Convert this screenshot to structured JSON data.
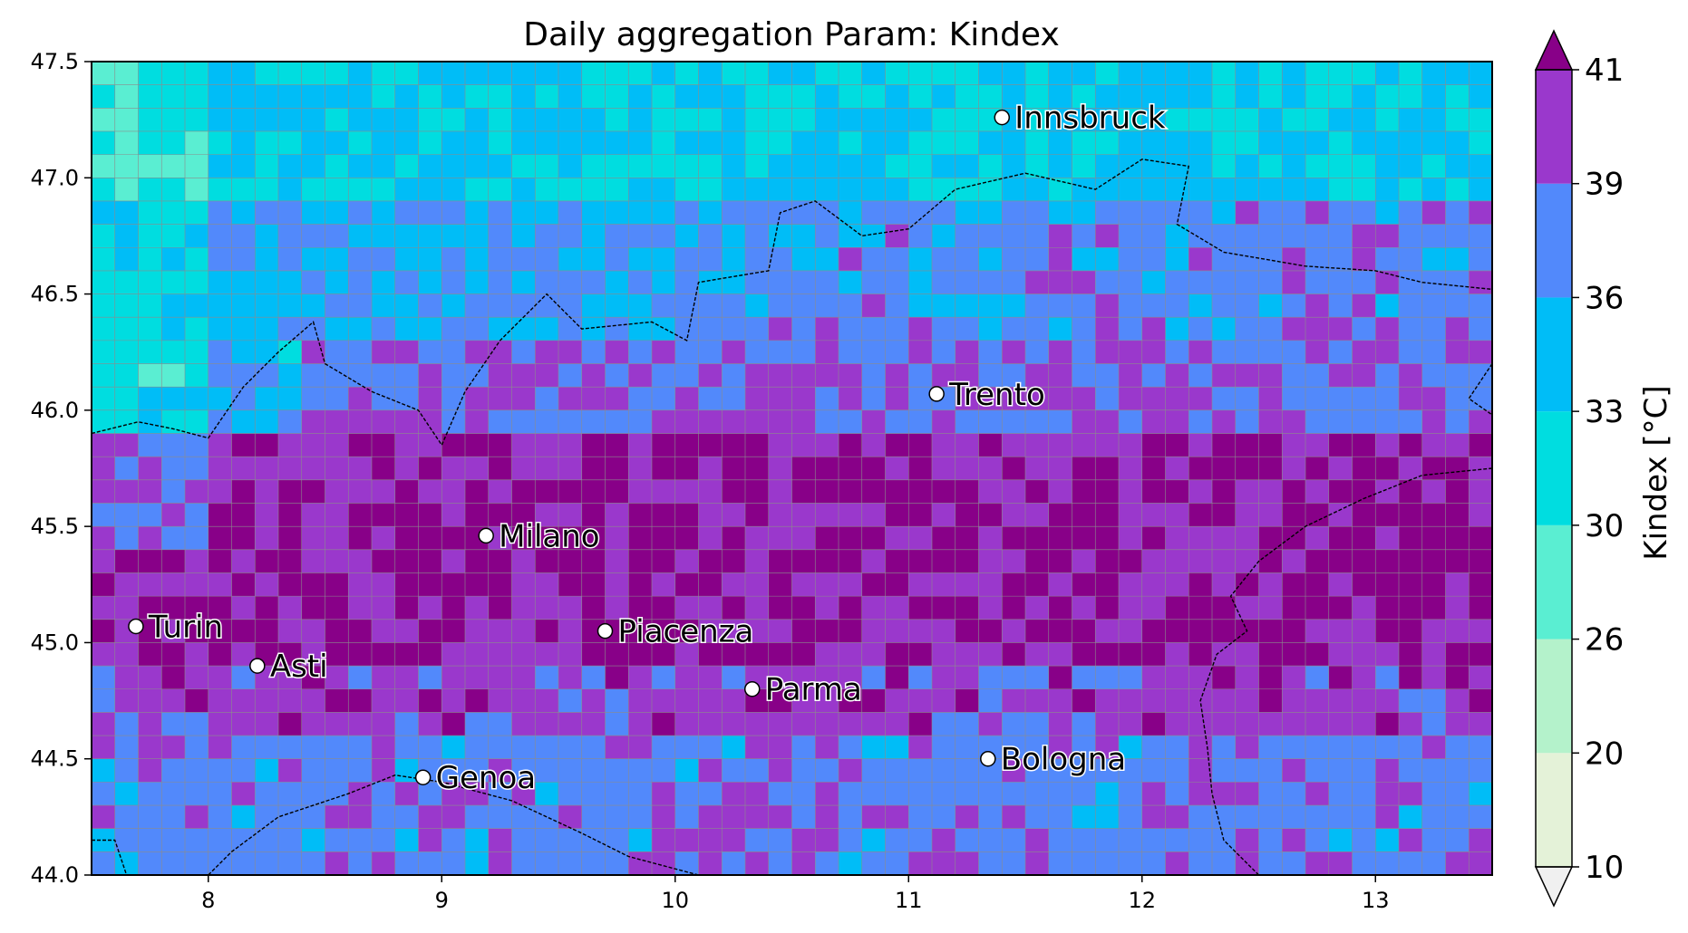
{
  "chart_data": {
    "type": "heatmap",
    "title": "Daily aggregation Param: Kindex",
    "xlabel": "",
    "ylabel": "",
    "xlim": [
      7.5,
      13.5
    ],
    "ylim": [
      44.0,
      47.5
    ],
    "x_ticks": [
      8,
      9,
      10,
      11,
      12,
      13
    ],
    "y_ticks": [
      "44.0",
      "44.5",
      "45.0",
      "45.5",
      "46.0",
      "46.5",
      "47.0",
      "47.5"
    ],
    "grid": true,
    "colorbar": {
      "label": "Kindex  [°C]",
      "ticks": [
        10,
        20,
        26,
        30,
        33,
        36,
        39,
        41
      ],
      "bins": [
        {
          "from": 10,
          "to": 20,
          "color": "#e4f2d8"
        },
        {
          "from": 20,
          "to": 26,
          "color": "#b4f2cb"
        },
        {
          "from": 26,
          "to": 30,
          "color": "#5aeed2"
        },
        {
          "from": 30,
          "to": 33,
          "color": "#00dde0"
        },
        {
          "from": 33,
          "to": 36,
          "color": "#00bdf7"
        },
        {
          "from": 36,
          "to": 39,
          "color": "#5289fb"
        },
        {
          "from": 39,
          "to": 41,
          "color": "#9a38cc"
        }
      ],
      "under_color": "#f0f0f0",
      "over_color": "#880088",
      "extend": "both"
    },
    "cities": [
      {
        "name": "Innsbruck",
        "lon": 11.4,
        "lat": 47.26
      },
      {
        "name": "Trento",
        "lon": 11.12,
        "lat": 46.07
      },
      {
        "name": "Milano",
        "lon": 9.19,
        "lat": 45.46
      },
      {
        "name": "Turin",
        "lon": 7.69,
        "lat": 45.07
      },
      {
        "name": "Piacenza",
        "lon": 9.7,
        "lat": 45.05
      },
      {
        "name": "Asti",
        "lon": 8.21,
        "lat": 44.9
      },
      {
        "name": "Parma",
        "lon": 10.33,
        "lat": 44.8
      },
      {
        "name": "Bologna",
        "lon": 11.34,
        "lat": 44.5
      },
      {
        "name": "Genoa",
        "lon": 8.92,
        "lat": 44.42
      }
    ]
  }
}
